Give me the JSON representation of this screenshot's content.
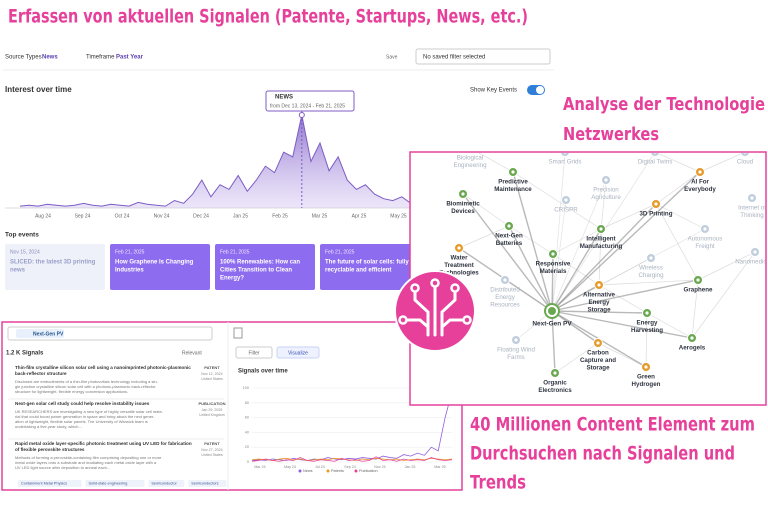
{
  "headline": "Erfassen von aktuellen Signalen (Patente, Startups, News, etc.)",
  "panel_filters": {
    "source_types_label": "Source Types",
    "source_types_value": "News",
    "timeframe_label": "Timeframe",
    "timeframe_value": "Past Year",
    "save": "Save",
    "saved_filter": "No saved filter selected"
  },
  "interest_chart": {
    "type": "area",
    "title": "Interest over time",
    "key_events_label": "Show Key Events",
    "tooltip": {
      "title": "NEWS",
      "range": "from Dec 13, 2024 - Feb 21, 2025"
    },
    "color": "#7c5cc4",
    "values": [
      2,
      3,
      2,
      4,
      3,
      2,
      3,
      5,
      3,
      2,
      4,
      3,
      2,
      6,
      4,
      3,
      2,
      8,
      5,
      15,
      30,
      12,
      25,
      20,
      35,
      18,
      30,
      45,
      38,
      60,
      55,
      100,
      50,
      70,
      40,
      55,
      30,
      20,
      25,
      15,
      10,
      8,
      12,
      5,
      4
    ],
    "x_labels": [
      "Aug 24",
      "Sep 24",
      "Oct 24",
      "Nov 24",
      "Dec 24",
      "Jan 25",
      "Feb 25",
      "Mar 25",
      "Apr 25",
      "May 25"
    ]
  },
  "top_events": {
    "title": "Top events",
    "cards": [
      {
        "date": "Nov 15, 2024",
        "title": [
          "SLICED: the latest 3D printing",
          "news"
        ]
      },
      {
        "date": "Feb 21, 2025",
        "title": [
          "How Graphene Is Changing",
          "Industries"
        ]
      },
      {
        "date": "Feb 21, 2025",
        "title": [
          "100% Renewables: How can",
          "Cities Transition to Clean",
          "Energy?"
        ]
      },
      {
        "date": "Feb 21, 2025",
        "title": [
          "The future of solar cells: fully",
          "recyclable and efficient"
        ]
      }
    ]
  },
  "network": {
    "title": [
      "Analyse der Technologie",
      "Netzwerkes"
    ],
    "center": "Next-Gen PV",
    "nodes": [
      {
        "label": [
          "Biological",
          "Engineering"
        ],
        "faded": true
      },
      {
        "label": [
          "Smart Grids"
        ],
        "faded": true
      },
      {
        "label": [
          "Digital Twins"
        ],
        "faded": true
      },
      {
        "label": [
          "Cloud"
        ],
        "faded": true
      },
      {
        "label": [
          "Predictive",
          "Maintenance"
        ],
        "faded": false,
        "color": "#6aa84f"
      },
      {
        "label": [
          "Precision",
          "Agriculture"
        ],
        "faded": true
      },
      {
        "label": [
          "AI For",
          "Everybody"
        ],
        "faded": false,
        "color": "#e69a28"
      },
      {
        "label": [
          "Biomimetic",
          "Devices"
        ],
        "faded": false,
        "color": "#6aa84f"
      },
      {
        "label": [
          "CRISPR"
        ],
        "faded": true
      },
      {
        "label": [
          "3D Printing"
        ],
        "faded": false,
        "color": "#e69a28"
      },
      {
        "label": [
          "Internet of",
          "Thinking"
        ],
        "faded": true
      },
      {
        "label": [
          "Next-Gen",
          "Batteries"
        ],
        "faded": false,
        "color": "#6aa84f"
      },
      {
        "label": [
          "Intelligent",
          "Manufacturing"
        ],
        "faded": false,
        "color": "#6aa84f"
      },
      {
        "label": [
          "Autonomous",
          "Freight"
        ],
        "faded": true
      },
      {
        "label": [
          "Nanomedicine"
        ],
        "faded": true
      },
      {
        "label": [
          "Water",
          "Treatment",
          "Technologies"
        ],
        "faded": false,
        "color": "#e69a28"
      },
      {
        "label": [
          "Responsive",
          "Materials"
        ],
        "faded": false,
        "color": "#6aa84f"
      },
      {
        "label": [
          "Wireless",
          "Charging"
        ],
        "faded": true
      },
      {
        "label": [
          "Distributed",
          "Energy",
          "Resources"
        ],
        "faded": true
      },
      {
        "label": [
          "Graphene"
        ],
        "faded": false,
        "color": "#6aa84f"
      },
      {
        "label": [
          "Alternative",
          "Energy",
          "Storage"
        ],
        "faded": false,
        "color": "#e69a28"
      },
      {
        "label": [
          "Energy",
          "Harvesting"
        ],
        "faded": false,
        "color": "#6aa84f"
      },
      {
        "label": [
          "Aerogels"
        ],
        "faded": false,
        "color": "#6aa84f"
      },
      {
        "label": [
          "Carbon",
          "Capture and",
          "Storage"
        ],
        "faded": false,
        "color": "#e69a28"
      },
      {
        "label": [
          "Floating Wind",
          "Farms"
        ],
        "faded": true
      },
      {
        "label": [
          "Organic",
          "Electronics"
        ],
        "faded": false,
        "color": "#6aa84f"
      },
      {
        "label": [
          "Green",
          "Hydrogen"
        ],
        "faded": false,
        "color": "#e69a28"
      }
    ]
  },
  "signals": {
    "search": "Next-Gen PV",
    "count": "1.2 K Signals",
    "sort": "Relevant",
    "filter_button": "Filter",
    "visualize_button": "Visualize",
    "items": [
      {
        "title": [
          "Thin-film crystalline silicon solar cell using a nanoimprinted photonic-plasmonic",
          "back-reflector structure"
        ],
        "description": [
          "Disclosed are embodiments of a thin-film photovoltaic technology including a sin-",
          "gle junction crystalline silicon solar cell with a photonic-plasmonic back-reflector",
          "structure for lightweight, flexible energy conversion applications."
        ],
        "badge": "PATENT",
        "date": "Nov 12, 2024",
        "country": "United States"
      },
      {
        "title": [
          "Next-gen solar cell study could help resolve instability issues"
        ],
        "description": [
          "UK RESEARCHERS are investigating a new type of highly versatile solar cell mate-",
          "rial that could boost power generation in space and bring about the next gener-",
          "ation of lightweight, flexible solar panels. The University of Warwick team is",
          "undertaking a five-year study, which..."
        ],
        "badge": "PUBLICATION",
        "date": "Jan 29, 2025",
        "country": "United Kingdom"
      },
      {
        "title": [
          "Rapid metal oxide layer-specific photonic treatment using UV LED for fabrication",
          "of flexible perovskite structures"
        ],
        "description": [
          "Methods of forming a perovskite-containing film comprising depositing one or more",
          "metal oxide layers onto a substrate and irradiating each metal oxide layer with a",
          "UV LED light source after deposition to anneal each..."
        ],
        "badge": "PATENT",
        "date": "Nov 27, 2024",
        "country": "United States"
      }
    ],
    "tags": [
      "Containment Metal Physics",
      "Solid-state engineering",
      "Semiconductor",
      "Semiconductors"
    ],
    "chart": {
      "type": "line",
      "title": "Signals over time",
      "ylim": [
        0,
        100
      ],
      "yticks": [
        0,
        20,
        40,
        60,
        80,
        100
      ],
      "x_labels": [
        "Mar 24",
        "May 24",
        "Jul 24",
        "Sep 24",
        "Nov 24",
        "Jan 25",
        "Mar 25"
      ],
      "series": [
        {
          "name": "News",
          "color": "#8e5ee0",
          "values": [
            2,
            3,
            2,
            4,
            3,
            2,
            5,
            3,
            2,
            4,
            3,
            6,
            4,
            3,
            5,
            4,
            6,
            5,
            4,
            8,
            6,
            5,
            10,
            8,
            12,
            9,
            20,
            15,
            60,
            95
          ]
        },
        {
          "name": "Patents",
          "color": "#e69a28",
          "values": [
            3,
            4,
            3,
            2,
            4,
            5,
            3,
            4,
            2,
            3,
            4,
            3,
            5,
            4,
            3,
            2,
            4,
            3,
            5,
            4,
            3,
            4,
            2,
            3,
            4,
            3,
            5,
            4,
            3,
            4
          ]
        },
        {
          "name": "Publication",
          "color": "#e6409b",
          "values": [
            1,
            2,
            4,
            2,
            1,
            3,
            2,
            6,
            2,
            1,
            3,
            2,
            1,
            5,
            2,
            3,
            1,
            2,
            7,
            2,
            3,
            1,
            4,
            2,
            3,
            2,
            6,
            3,
            2,
            3
          ]
        }
      ]
    }
  },
  "footer_text": [
    "40 Millionen Content Element zum",
    "Durchsuchen nach Signalen und",
    "Trends"
  ]
}
